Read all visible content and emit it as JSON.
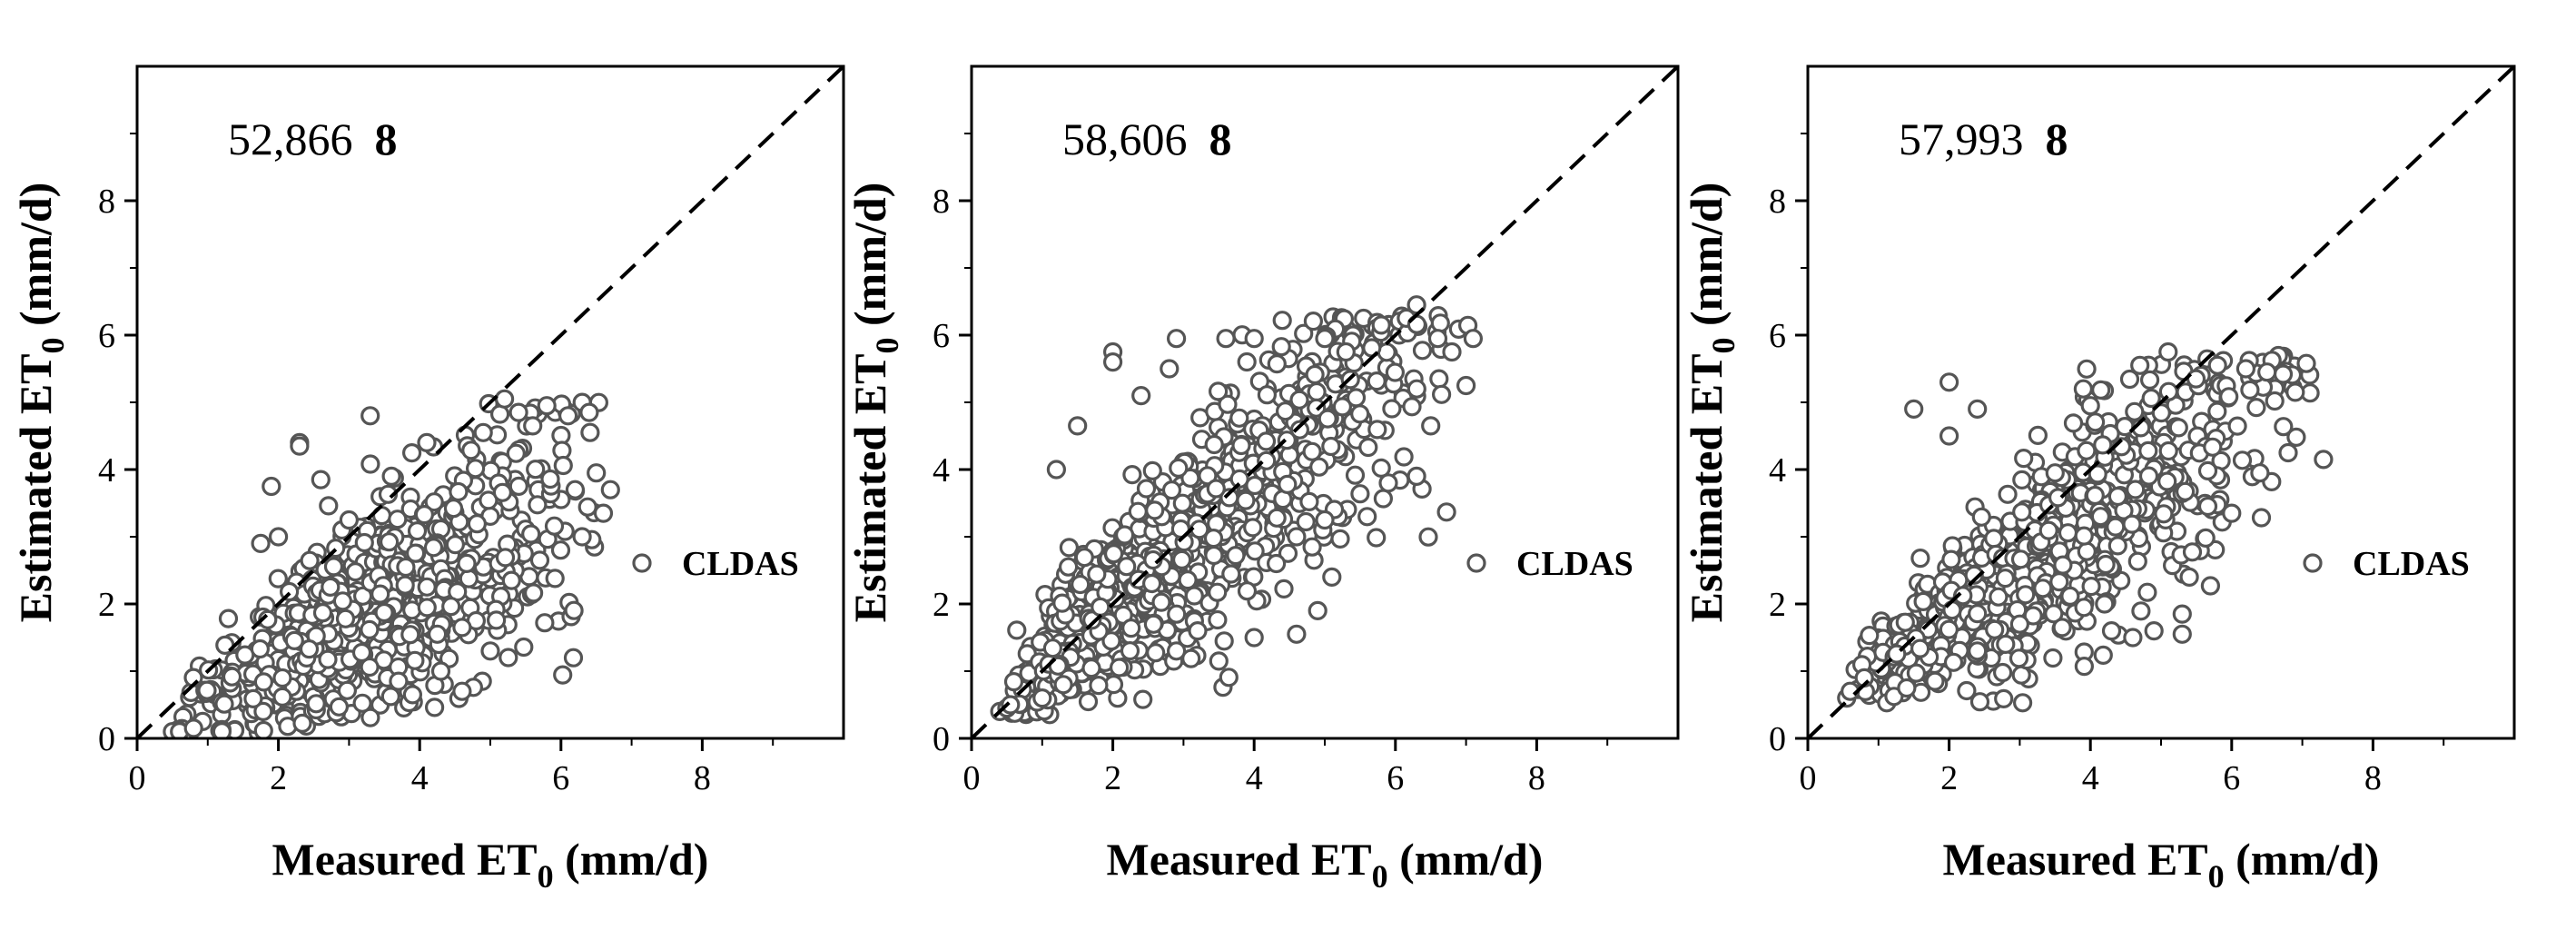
{
  "colors": {
    "marker_edge": "#555555",
    "marker_fill": "#ffffff",
    "axis": "#000000",
    "refline": "#000000"
  },
  "chart_data": [
    {
      "type": "scatter",
      "panel": "left",
      "title": "",
      "annotation": {
        "text": "52,866",
        "bold": "8"
      },
      "xlabel": {
        "main": "Measured ET",
        "sub": "0",
        "unit": " (mm/d)"
      },
      "ylabel": {
        "main": "Estimated ET",
        "sub": "0",
        "unit": " (mm/d)"
      },
      "xlim": [
        0,
        10
      ],
      "ylim": [
        0,
        10
      ],
      "xticks": [
        0,
        2,
        4,
        6,
        8
      ],
      "yticks": [
        0,
        2,
        4,
        6,
        8
      ],
      "legend": {
        "label": "CLDAS",
        "position": "right",
        "marker": "open-circle"
      },
      "refline": {
        "type": "1:1",
        "style": "dashed"
      },
      "series": [
        {
          "name": "CLDAS",
          "cloud": {
            "seed": 11,
            "n": 760,
            "x_min": 0.45,
            "x_max": 6.7,
            "x_mode": 3.2,
            "slope": 0.58,
            "intercept": -0.05,
            "sd_base": 0.18,
            "sd_per_x": 0.16,
            "y_min": 0.05,
            "y_max": 5.0
          },
          "points": [
            [
              3.3,
              4.8
            ],
            [
              2.3,
              4.4
            ],
            [
              2.3,
              4.35
            ],
            [
              4.1,
              4.4
            ],
            [
              4.9,
              4.55
            ],
            [
              5.2,
              5.05
            ],
            [
              5.4,
              4.85
            ],
            [
              5.6,
              4.65
            ],
            [
              5.8,
              4.95
            ],
            [
              6.1,
              4.8
            ],
            [
              6.4,
              4.85
            ],
            [
              6.5,
              3.95
            ],
            [
              6.7,
              3.7
            ],
            [
              6.6,
              3.35
            ],
            [
              6.2,
              3.7
            ],
            [
              6.3,
              3.0
            ],
            [
              5.7,
              2.65
            ],
            [
              5.3,
              2.35
            ],
            [
              4.8,
              1.75
            ],
            [
              4.6,
              1.65
            ],
            [
              4.25,
              1.55
            ],
            [
              4.6,
              0.7
            ],
            [
              3.9,
              0.65
            ],
            [
              3.7,
              0.85
            ],
            [
              4.3,
              1.0
            ],
            [
              5.0,
              1.3
            ],
            [
              1.9,
              3.75
            ],
            [
              2.0,
              3.0
            ],
            [
              1.75,
              2.9
            ],
            [
              2.6,
              3.85
            ],
            [
              3.6,
              3.9
            ],
            [
              3.0,
              3.25
            ],
            [
              0.5,
              0.1
            ],
            [
              0.6,
              0.1
            ],
            [
              0.8,
              0.15
            ],
            [
              1.2,
              0.1
            ]
          ]
        }
      ]
    },
    {
      "type": "scatter",
      "panel": "middle",
      "title": "",
      "annotation": {
        "text": "58,606",
        "bold": "8"
      },
      "xlabel": {
        "main": "Measured ET",
        "sub": "0",
        "unit": " (mm/d)"
      },
      "ylabel": {
        "main": "Estimated ET",
        "sub": "0",
        "unit": " (mm/d)"
      },
      "xlim": [
        0,
        10
      ],
      "ylim": [
        0,
        10
      ],
      "xticks": [
        0,
        2,
        4,
        6,
        8
      ],
      "yticks": [
        0,
        2,
        4,
        6,
        8
      ],
      "legend": {
        "label": "CLDAS",
        "position": "right",
        "marker": "open-circle"
      },
      "refline": {
        "type": "1:1",
        "style": "dashed"
      },
      "series": [
        {
          "name": "CLDAS",
          "cloud": {
            "seed": 23,
            "n": 900,
            "x_min": 0.4,
            "x_max": 7.1,
            "x_mode": 1.6,
            "slope": 0.88,
            "intercept": 0.2,
            "sd_base": 0.2,
            "sd_per_x": 0.17,
            "y_min": 0.35,
            "y_max": 6.3
          },
          "points": [
            [
              2.0,
              5.75
            ],
            [
              2.0,
              5.6
            ],
            [
              2.9,
              5.95
            ],
            [
              2.8,
              5.5
            ],
            [
              3.6,
              5.95
            ],
            [
              4.0,
              5.95
            ],
            [
              5.0,
              5.95
            ],
            [
              5.3,
              5.75
            ],
            [
              5.8,
              6.15
            ],
            [
              6.3,
              6.45
            ],
            [
              6.6,
              5.95
            ],
            [
              6.8,
              5.75
            ],
            [
              7.1,
              5.95
            ],
            [
              7.0,
              5.25
            ],
            [
              6.5,
              4.65
            ],
            [
              6.3,
              3.9
            ],
            [
              5.9,
              3.8
            ],
            [
              5.6,
              3.3
            ],
            [
              5.0,
              3.25
            ],
            [
              4.6,
              3.0
            ],
            [
              5.1,
              2.4
            ],
            [
              4.9,
              1.9
            ],
            [
              4.6,
              1.55
            ],
            [
              4.0,
              1.5
            ],
            [
              3.5,
              1.15
            ],
            [
              3.2,
              1.6
            ],
            [
              2.9,
              1.3
            ],
            [
              1.5,
              4.65
            ],
            [
              1.2,
              4.0
            ],
            [
              2.4,
              5.1
            ],
            [
              0.4,
              0.4
            ],
            [
              0.5,
              0.45
            ],
            [
              0.55,
              0.5
            ],
            [
              1.0,
              0.6
            ],
            [
              1.3,
              0.8
            ]
          ]
        }
      ]
    },
    {
      "type": "scatter",
      "panel": "right",
      "title": "",
      "annotation": {
        "text": "57,993",
        "bold": "8"
      },
      "xlabel": {
        "main": "Measured ET",
        "sub": "0",
        "unit": " (mm/d)"
      },
      "ylabel": {
        "main": "Estimated ET",
        "sub": "0",
        "unit": " (mm/d)"
      },
      "xlim": [
        0,
        10
      ],
      "ylim": [
        0,
        10
      ],
      "xticks": [
        0,
        2,
        4,
        6,
        8
      ],
      "yticks": [
        0,
        2,
        4,
        6,
        8
      ],
      "legend": {
        "label": "CLDAS",
        "position": "right",
        "marker": "open-circle"
      },
      "refline": {
        "type": "1:1",
        "style": "dashed"
      },
      "series": [
        {
          "name": "CLDAS",
          "cloud": {
            "seed": 37,
            "n": 880,
            "x_min": 0.5,
            "x_max": 7.3,
            "x_mode": 2.2,
            "slope": 0.72,
            "intercept": 0.35,
            "sd_base": 0.2,
            "sd_per_x": 0.14,
            "y_min": 0.5,
            "y_max": 5.7
          },
          "points": [
            [
              2.0,
              5.3
            ],
            [
              2.4,
              4.9
            ],
            [
              2.0,
              4.5
            ],
            [
              1.5,
              4.9
            ],
            [
              3.9,
              5.2
            ],
            [
              4.0,
              4.95
            ],
            [
              4.7,
              5.55
            ],
            [
              5.1,
              5.75
            ],
            [
              5.8,
              5.55
            ],
            [
              6.2,
              5.5
            ],
            [
              6.5,
              5.45
            ],
            [
              6.9,
              5.15
            ],
            [
              7.3,
              4.15
            ],
            [
              6.8,
              4.25
            ],
            [
              6.4,
              3.95
            ],
            [
              6.0,
              3.35
            ],
            [
              5.4,
              2.4
            ],
            [
              5.3,
              1.85
            ],
            [
              5.3,
              1.55
            ],
            [
              4.9,
              1.6
            ],
            [
              4.6,
              1.5
            ],
            [
              4.3,
              1.6
            ],
            [
              4.2,
              2.0
            ],
            [
              3.6,
              1.65
            ],
            [
              3.0,
              1.7
            ],
            [
              2.8,
              1.4
            ],
            [
              2.4,
              1.3
            ],
            [
              1.8,
              0.85
            ],
            [
              1.4,
              0.75
            ],
            [
              0.55,
              0.6
            ],
            [
              0.6,
              0.7
            ],
            [
              0.8,
              0.9
            ],
            [
              3.5,
              3.95
            ]
          ]
        }
      ]
    }
  ]
}
